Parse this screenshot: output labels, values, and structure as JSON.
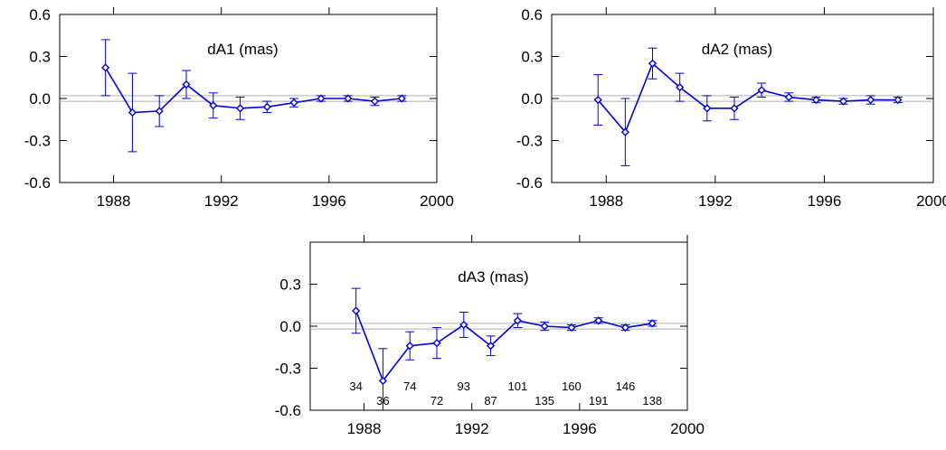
{
  "chart_data": [
    {
      "type": "line",
      "title": "dA1 (mas)",
      "xlabel": "",
      "ylabel": "",
      "xlim": [
        1986,
        2000
      ],
      "ylim": [
        -0.6,
        0.6
      ],
      "xticks": [
        1988,
        1992,
        1996,
        2000
      ],
      "xtick_labels": [
        "1988",
        "1992",
        "1996",
        "2000"
      ],
      "yticks": [
        0.6,
        0.3,
        0.0,
        -0.3,
        -0.6
      ],
      "ytick_labels": [
        "0.6",
        "0.3",
        "0.0",
        "-0.3",
        "-0.6"
      ],
      "reference_band": [
        -0.02,
        0.02
      ],
      "series": [
        {
          "color": "#0000dd",
          "x": [
            1987.7,
            1988.7,
            1989.7,
            1990.7,
            1991.7,
            1992.7,
            1993.7,
            1994.7,
            1995.7,
            1996.7,
            1997.7,
            1998.7
          ],
          "y": [
            0.22,
            -0.1,
            -0.09,
            0.1,
            -0.05,
            -0.07,
            -0.06,
            -0.03,
            0.0,
            0.0,
            -0.02,
            0.0
          ],
          "err": [
            0.2,
            0.28,
            0.11,
            0.1,
            0.09,
            0.08,
            0.04,
            0.03,
            0.02,
            0.02,
            0.03,
            0.02
          ]
        }
      ]
    },
    {
      "type": "line",
      "title": "dA2 (mas)",
      "xlabel": "",
      "ylabel": "",
      "xlim": [
        1986,
        2000
      ],
      "ylim": [
        -0.6,
        0.6
      ],
      "xticks": [
        1988,
        1992,
        1996,
        2000
      ],
      "xtick_labels": [
        "1988",
        "1992",
        "1996",
        "2000"
      ],
      "yticks": [
        0.6,
        0.3,
        0.0,
        -0.3,
        -0.6
      ],
      "ytick_labels": [
        "0.6",
        "0.3",
        "0.0",
        "-0.3",
        "-0.6"
      ],
      "reference_band": [
        -0.02,
        0.02
      ],
      "series": [
        {
          "color": "#0000dd",
          "x": [
            1987.7,
            1988.7,
            1989.7,
            1990.7,
            1991.7,
            1992.7,
            1993.7,
            1994.7,
            1995.7,
            1996.7,
            1997.7,
            1998.7
          ],
          "y": [
            -0.01,
            -0.24,
            0.25,
            0.08,
            -0.07,
            -0.07,
            0.06,
            0.01,
            -0.01,
            -0.02,
            -0.01,
            -0.01
          ],
          "err": [
            0.18,
            0.24,
            0.11,
            0.1,
            0.09,
            0.08,
            0.05,
            0.03,
            0.02,
            0.02,
            0.03,
            0.02
          ]
        }
      ]
    },
    {
      "type": "line",
      "title": "dA3 (mas)",
      "xlabel": "",
      "ylabel": "",
      "xlim": [
        1986,
        2000
      ],
      "ylim": [
        -0.6,
        0.6
      ],
      "xticks": [
        1988,
        1992,
        1996,
        2000
      ],
      "xtick_labels": [
        "1988",
        "1992",
        "1996",
        "2000"
      ],
      "yticks": [
        0.3,
        0.0,
        -0.3,
        -0.6
      ],
      "ytick_labels": [
        "0.3",
        "0.0",
        "-0.3",
        "-0.6"
      ],
      "reference_band": [
        -0.02,
        0.02
      ],
      "series": [
        {
          "color": "#0000dd",
          "x": [
            1987.7,
            1988.7,
            1989.7,
            1990.7,
            1991.7,
            1992.7,
            1993.7,
            1994.7,
            1995.7,
            1996.7,
            1997.7,
            1998.7
          ],
          "y": [
            0.11,
            -0.39,
            -0.14,
            -0.12,
            0.01,
            -0.14,
            0.04,
            0.0,
            -0.01,
            0.04,
            -0.01,
            0.02
          ],
          "err": [
            0.16,
            0.23,
            0.1,
            0.11,
            0.09,
            0.07,
            0.05,
            0.03,
            0.02,
            0.02,
            0.02,
            0.02
          ]
        }
      ],
      "annotations": [
        {
          "text": "34",
          "x": 1987.7,
          "row": "upper"
        },
        {
          "text": "36",
          "x": 1988.7,
          "row": "lower"
        },
        {
          "text": "74",
          "x": 1989.7,
          "row": "upper"
        },
        {
          "text": "72",
          "x": 1990.7,
          "row": "lower"
        },
        {
          "text": "93",
          "x": 1991.7,
          "row": "upper"
        },
        {
          "text": "87",
          "x": 1992.7,
          "row": "lower"
        },
        {
          "text": "101",
          "x": 1993.7,
          "row": "upper"
        },
        {
          "text": "135",
          "x": 1994.7,
          "row": "lower"
        },
        {
          "text": "160",
          "x": 1995.7,
          "row": "upper"
        },
        {
          "text": "191",
          "x": 1996.7,
          "row": "lower"
        },
        {
          "text": "146",
          "x": 1997.7,
          "row": "upper"
        },
        {
          "text": "138",
          "x": 1998.7,
          "row": "lower"
        }
      ]
    }
  ]
}
